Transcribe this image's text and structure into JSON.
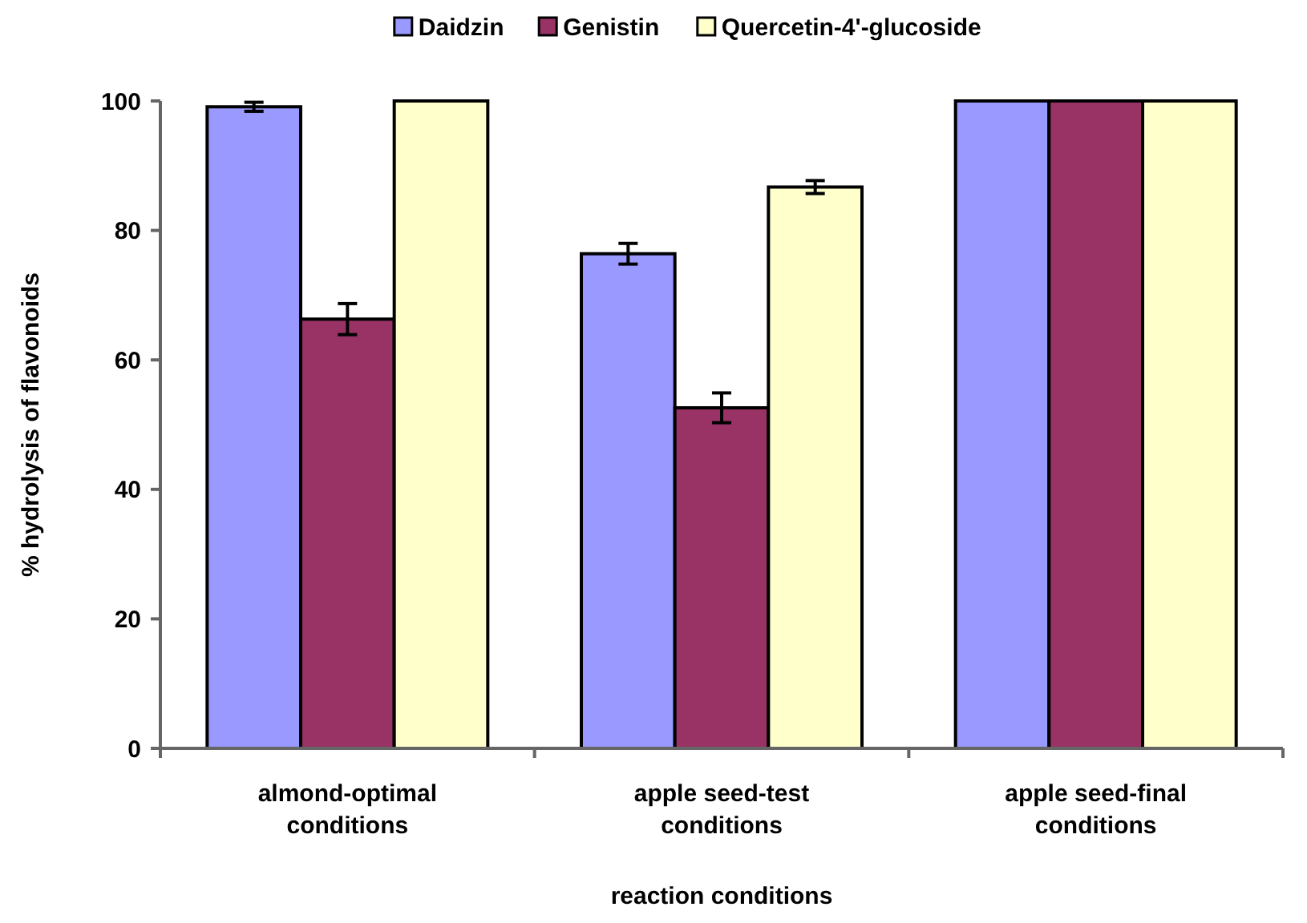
{
  "chart_data": {
    "type": "bar",
    "xlabel": "reaction conditions",
    "ylabel": "% hydrolysis of flavonoids",
    "categories": [
      "almond-optimal conditions",
      "apple seed-test conditions",
      "apple seed-final conditions"
    ],
    "series": [
      {
        "name": "Daidzin",
        "color": "#9999ff",
        "values": [
          99.1,
          76.4,
          100
        ],
        "errors": [
          0.7,
          1.6,
          null
        ]
      },
      {
        "name": "Genistin",
        "color": "#993366",
        "values": [
          66.3,
          52.6,
          100
        ],
        "errors": [
          2.4,
          2.3,
          null
        ]
      },
      {
        "name": "Quercetin-4'-glucoside",
        "color": "#ffffcc",
        "values": [
          100,
          86.7,
          100
        ],
        "errors": [
          null,
          1.0,
          null
        ]
      }
    ],
    "ylim": [
      0,
      100
    ],
    "yticks": [
      0,
      20,
      40,
      60,
      80,
      100
    ],
    "grid": false,
    "legend": "top"
  }
}
